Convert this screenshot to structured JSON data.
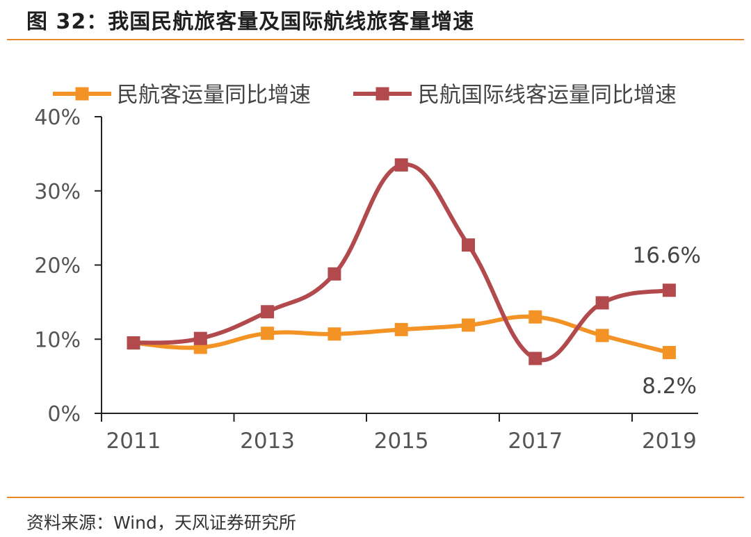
{
  "figure": {
    "title": "图 32：我国民航旅客量及国际航线旅客量增速",
    "source": "资料来源：Wind，天风证券研究所"
  },
  "colors": {
    "accent_rule": "#e8862a",
    "series_domestic": "#f39325",
    "series_international": "#b24a4d"
  },
  "chart_data": {
    "type": "line",
    "x": [
      "2011",
      "2012",
      "2013",
      "2014",
      "2015",
      "2016",
      "2017",
      "2018",
      "2019"
    ],
    "x_tick_labels": [
      "2011",
      "2013",
      "2015",
      "2017",
      "2019"
    ],
    "series": [
      {
        "name": "民航客运量同比增速",
        "marker": "square",
        "values": [
          9.5,
          8.9,
          10.8,
          10.7,
          11.3,
          11.9,
          13.0,
          10.5,
          8.2
        ]
      },
      {
        "name": "民航国际线客运量同比增速",
        "marker": "square",
        "values": [
          9.5,
          10.1,
          13.7,
          18.8,
          33.5,
          22.7,
          7.4,
          14.9,
          16.6
        ]
      }
    ],
    "annotations": [
      "16.6%",
      "8.2%"
    ],
    "y_tick_labels": [
      "0%",
      "10%",
      "20%",
      "30%",
      "40%"
    ],
    "ylim": [
      0,
      40
    ],
    "grid": false,
    "legend_position": "top",
    "smooth": true
  }
}
